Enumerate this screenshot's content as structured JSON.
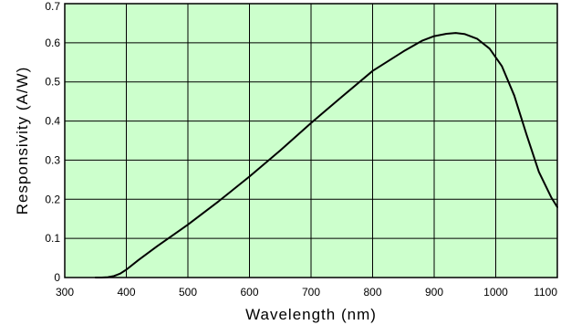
{
  "chart_data": {
    "type": "line",
    "title": "",
    "xlabel": "Wavelength (nm)",
    "ylabel": "Responsivity (A/W)",
    "xlim": [
      300,
      1100
    ],
    "ylim": [
      0,
      0.7
    ],
    "xticks": [
      300,
      400,
      500,
      600,
      700,
      800,
      900,
      1000,
      1100
    ],
    "yticks": [
      0,
      0.1,
      0.2,
      0.3,
      0.4,
      0.5,
      0.6,
      0.7
    ],
    "xtick_labels": [
      "300",
      "400",
      "500",
      "600",
      "700",
      "800",
      "900",
      "1000",
      "1100"
    ],
    "ytick_labels": [
      "0",
      "0.1",
      "0.2",
      "0.3",
      "0.4",
      "0.5",
      "0.6",
      "0.7"
    ],
    "grid": true,
    "legend": "none",
    "colors": {
      "plot_background": "#ccffcc",
      "grid": "#000000",
      "line": "#000000"
    },
    "series": [
      {
        "x": [
          350,
          360,
          370,
          380,
          390,
          400,
          420,
          450,
          500,
          550,
          600,
          650,
          700,
          750,
          800,
          850,
          880,
          900,
          920,
          935,
          950,
          970,
          990,
          1010,
          1030,
          1050,
          1070,
          1090,
          1100
        ],
        "y": [
          0,
          0,
          0.001,
          0.004,
          0.01,
          0.02,
          0.045,
          0.08,
          0.135,
          0.195,
          0.258,
          0.325,
          0.395,
          0.462,
          0.528,
          0.578,
          0.605,
          0.617,
          0.623,
          0.625,
          0.622,
          0.61,
          0.585,
          0.54,
          0.465,
          0.365,
          0.27,
          0.205,
          0.18
        ]
      }
    ]
  }
}
